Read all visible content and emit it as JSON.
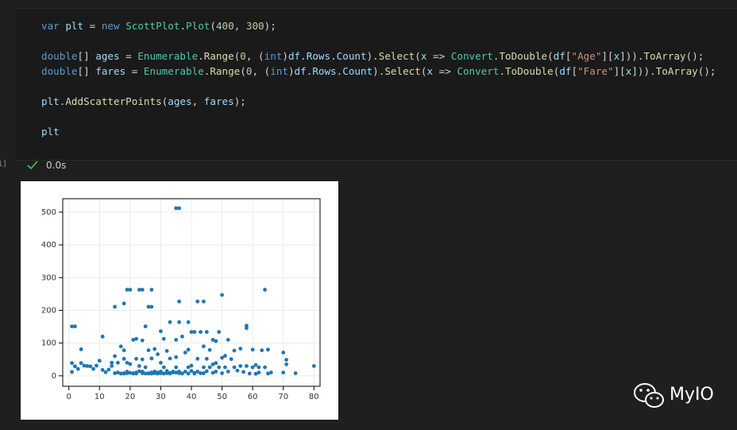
{
  "cell": {
    "counter": "1]",
    "status": "0.0s",
    "lines": [
      [
        {
          "text": "var",
          "color": "#569cd6"
        },
        {
          "text": " ",
          "color": "#d4d4d4"
        },
        {
          "text": "plt",
          "color": "#9cdcfe"
        },
        {
          "text": " = ",
          "color": "#d4d4d4"
        },
        {
          "text": "new",
          "color": "#569cd6"
        },
        {
          "text": " ",
          "color": "#d4d4d4"
        },
        {
          "text": "ScottPlot",
          "color": "#4ec9b0"
        },
        {
          "text": ".",
          "color": "#d4d4d4"
        },
        {
          "text": "Plot",
          "color": "#4ec9b0"
        },
        {
          "text": "(",
          "color": "#d4d4d4"
        },
        {
          "text": "400",
          "color": "#b5cea8"
        },
        {
          "text": ", ",
          "color": "#d4d4d4"
        },
        {
          "text": "300",
          "color": "#b5cea8"
        },
        {
          "text": ");",
          "color": "#d4d4d4"
        }
      ],
      [],
      [
        {
          "text": "double",
          "color": "#569cd6"
        },
        {
          "text": "[] ",
          "color": "#d4d4d4"
        },
        {
          "text": "ages",
          "color": "#9cdcfe"
        },
        {
          "text": " = ",
          "color": "#d4d4d4"
        },
        {
          "text": "Enumerable",
          "color": "#4ec9b0"
        },
        {
          "text": ".",
          "color": "#d4d4d4"
        },
        {
          "text": "Range",
          "color": "#dcdcaa"
        },
        {
          "text": "(",
          "color": "#d4d4d4"
        },
        {
          "text": "0",
          "color": "#b5cea8"
        },
        {
          "text": ", (",
          "color": "#d4d4d4"
        },
        {
          "text": "int",
          "color": "#569cd6"
        },
        {
          "text": ")",
          "color": "#d4d4d4"
        },
        {
          "text": "df",
          "color": "#9cdcfe"
        },
        {
          "text": ".",
          "color": "#d4d4d4"
        },
        {
          "text": "Rows",
          "color": "#9cdcfe"
        },
        {
          "text": ".",
          "color": "#d4d4d4"
        },
        {
          "text": "Count",
          "color": "#9cdcfe"
        },
        {
          "text": ").",
          "color": "#d4d4d4"
        },
        {
          "text": "Select",
          "color": "#dcdcaa"
        },
        {
          "text": "(",
          "color": "#d4d4d4"
        },
        {
          "text": "x",
          "color": "#9cdcfe"
        },
        {
          "text": " => ",
          "color": "#d4d4d4"
        },
        {
          "text": "Convert",
          "color": "#4ec9b0"
        },
        {
          "text": ".",
          "color": "#d4d4d4"
        },
        {
          "text": "ToDouble",
          "color": "#dcdcaa"
        },
        {
          "text": "(",
          "color": "#d4d4d4"
        },
        {
          "text": "df",
          "color": "#9cdcfe"
        },
        {
          "text": "[",
          "color": "#d4d4d4"
        },
        {
          "text": "\"Age\"",
          "color": "#ce9178"
        },
        {
          "text": "][",
          "color": "#d4d4d4"
        },
        {
          "text": "x",
          "color": "#9cdcfe"
        },
        {
          "text": "])).",
          "color": "#d4d4d4"
        },
        {
          "text": "ToArray",
          "color": "#dcdcaa"
        },
        {
          "text": "();",
          "color": "#d4d4d4"
        }
      ],
      [
        {
          "text": "double",
          "color": "#569cd6"
        },
        {
          "text": "[] ",
          "color": "#d4d4d4"
        },
        {
          "text": "fares",
          "color": "#9cdcfe"
        },
        {
          "text": " = ",
          "color": "#d4d4d4"
        },
        {
          "text": "Enumerable",
          "color": "#4ec9b0"
        },
        {
          "text": ".",
          "color": "#d4d4d4"
        },
        {
          "text": "Range",
          "color": "#dcdcaa"
        },
        {
          "text": "(",
          "color": "#d4d4d4"
        },
        {
          "text": "0",
          "color": "#b5cea8"
        },
        {
          "text": ", (",
          "color": "#d4d4d4"
        },
        {
          "text": "int",
          "color": "#569cd6"
        },
        {
          "text": ")",
          "color": "#d4d4d4"
        },
        {
          "text": "df",
          "color": "#9cdcfe"
        },
        {
          "text": ".",
          "color": "#d4d4d4"
        },
        {
          "text": "Rows",
          "color": "#9cdcfe"
        },
        {
          "text": ".",
          "color": "#d4d4d4"
        },
        {
          "text": "Count",
          "color": "#9cdcfe"
        },
        {
          "text": ").",
          "color": "#d4d4d4"
        },
        {
          "text": "Select",
          "color": "#dcdcaa"
        },
        {
          "text": "(",
          "color": "#d4d4d4"
        },
        {
          "text": "x",
          "color": "#9cdcfe"
        },
        {
          "text": " => ",
          "color": "#d4d4d4"
        },
        {
          "text": "Convert",
          "color": "#4ec9b0"
        },
        {
          "text": ".",
          "color": "#d4d4d4"
        },
        {
          "text": "ToDouble",
          "color": "#dcdcaa"
        },
        {
          "text": "(",
          "color": "#d4d4d4"
        },
        {
          "text": "df",
          "color": "#9cdcfe"
        },
        {
          "text": "[",
          "color": "#d4d4d4"
        },
        {
          "text": "\"Fare\"",
          "color": "#ce9178"
        },
        {
          "text": "][",
          "color": "#d4d4d4"
        },
        {
          "text": "x",
          "color": "#9cdcfe"
        },
        {
          "text": "])).",
          "color": "#d4d4d4"
        },
        {
          "text": "ToArray",
          "color": "#dcdcaa"
        },
        {
          "text": "();",
          "color": "#d4d4d4"
        }
      ],
      [],
      [
        {
          "text": "plt",
          "color": "#9cdcfe"
        },
        {
          "text": ".",
          "color": "#d4d4d4"
        },
        {
          "text": "AddScatterPoints",
          "color": "#dcdcaa"
        },
        {
          "text": "(",
          "color": "#d4d4d4"
        },
        {
          "text": "ages",
          "color": "#9cdcfe"
        },
        {
          "text": ", ",
          "color": "#d4d4d4"
        },
        {
          "text": "fares",
          "color": "#9cdcfe"
        },
        {
          "text": ");",
          "color": "#d4d4d4"
        }
      ],
      [],
      [
        {
          "text": "plt",
          "color": "#9cdcfe"
        }
      ]
    ]
  },
  "watermark": "MyIO",
  "chart_data": {
    "type": "scatter",
    "color": "#1f77b4",
    "grid": true,
    "xlim": [
      -2,
      82
    ],
    "ylim": [
      -32,
      541
    ],
    "xticks": [
      0,
      10,
      20,
      30,
      40,
      50,
      60,
      70,
      80
    ],
    "yticks": [
      0,
      100,
      200,
      300,
      400,
      500
    ],
    "x": [
      35,
      36,
      64,
      19,
      20,
      23,
      24,
      27,
      50,
      36,
      44,
      15,
      26,
      27,
      42,
      18,
      1,
      2,
      25,
      58,
      58,
      36,
      33,
      39,
      40,
      41,
      43,
      30,
      45,
      49,
      21,
      22,
      24,
      31,
      35,
      37,
      47,
      48,
      52,
      56,
      60,
      65,
      63,
      70,
      71,
      80,
      74,
      66,
      61,
      62,
      54,
      50,
      44,
      39,
      32,
      28,
      26,
      17,
      18,
      15,
      11,
      4,
      6,
      2,
      3,
      1,
      1,
      5,
      7,
      8,
      9,
      10,
      11,
      12,
      13,
      14,
      15,
      16,
      17,
      18,
      19,
      20,
      21,
      22,
      23,
      24,
      25,
      26,
      27,
      28,
      29,
      30,
      31,
      32,
      33,
      34,
      35,
      36,
      37,
      38,
      39,
      40,
      41,
      42,
      43,
      44,
      45,
      46,
      47,
      48,
      49,
      50,
      51,
      52,
      54,
      55,
      56,
      57,
      59,
      60,
      61,
      62,
      64,
      65,
      70,
      71,
      22,
      24,
      29,
      30,
      33,
      35,
      38,
      40,
      45,
      47,
      48,
      51,
      53,
      58,
      27,
      19,
      16,
      14,
      20,
      23,
      18,
      42,
      46,
      4,
      25,
      30,
      35,
      28,
      22,
      18,
      26,
      32,
      36,
      19,
      21,
      33,
      34,
      31,
      39,
      29,
      24,
      27,
      41,
      44
    ],
    "values": [
      512,
      512,
      263,
      263,
      263,
      263,
      263,
      263,
      247,
      227,
      227,
      211,
      211,
      211,
      227,
      221,
      151,
      151,
      151,
      153,
      146,
      164,
      164,
      164,
      134,
      134,
      134,
      136,
      134,
      134,
      110,
      113,
      108,
      113,
      110,
      120,
      110,
      106,
      110,
      83,
      80,
      80,
      78,
      71,
      49,
      30,
      8,
      10,
      33,
      10,
      77,
      55,
      90,
      80,
      76,
      82,
      78,
      90,
      78,
      60,
      120,
      81,
      30,
      29,
      21,
      39,
      12,
      31,
      29,
      21,
      31,
      46,
      18,
      11,
      19,
      30,
      8,
      10,
      7,
      8,
      13,
      9,
      8,
      7,
      14,
      8,
      26,
      8,
      10,
      13,
      7,
      8,
      26,
      15,
      9,
      13,
      26,
      8,
      7,
      13,
      26,
      15,
      9,
      13,
      8,
      26,
      14,
      26,
      9,
      13,
      26,
      8,
      26,
      13,
      26,
      16,
      30,
      12,
      7,
      26,
      6,
      26,
      26,
      7,
      10,
      35,
      52,
      50,
      66,
      40,
      53,
      57,
      71,
      31,
      52,
      35,
      39,
      61,
      51,
      30,
      53,
      40,
      40,
      40,
      36,
      30,
      52,
      52,
      79,
      39,
      7,
      13,
      10,
      8,
      10,
      7,
      7,
      8,
      13,
      8,
      7,
      7,
      10,
      7,
      7,
      10,
      13,
      7,
      7,
      8
    ]
  }
}
